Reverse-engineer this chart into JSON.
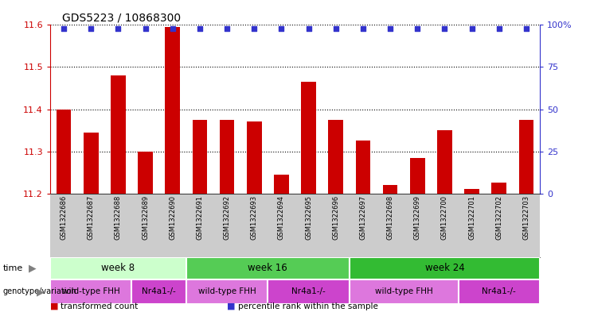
{
  "title": "GDS5223 / 10868300",
  "samples": [
    "GSM1322686",
    "GSM1322687",
    "GSM1322688",
    "GSM1322689",
    "GSM1322690",
    "GSM1322691",
    "GSM1322692",
    "GSM1322693",
    "GSM1322694",
    "GSM1322695",
    "GSM1322696",
    "GSM1322697",
    "GSM1322698",
    "GSM1322699",
    "GSM1322700",
    "GSM1322701",
    "GSM1322702",
    "GSM1322703"
  ],
  "bar_values": [
    11.4,
    11.345,
    11.48,
    11.3,
    11.595,
    11.375,
    11.375,
    11.37,
    11.245,
    11.465,
    11.375,
    11.325,
    11.22,
    11.285,
    11.35,
    11.21,
    11.225,
    11.375
  ],
  "bar_color": "#cc0000",
  "percentile_color": "#3333cc",
  "ymin": 11.2,
  "ymax": 11.6,
  "yticks": [
    11.2,
    11.3,
    11.4,
    11.5,
    11.6
  ],
  "right_yticks": [
    0,
    25,
    50,
    75,
    100
  ],
  "right_yticklabels": [
    "0",
    "25",
    "50",
    "75",
    "100%"
  ],
  "time_groups": [
    {
      "label": "week 8",
      "start": 0,
      "end": 5,
      "color": "#ccffcc"
    },
    {
      "label": "week 16",
      "start": 5,
      "end": 11,
      "color": "#55cc55"
    },
    {
      "label": "week 24",
      "start": 11,
      "end": 18,
      "color": "#33bb33"
    }
  ],
  "genotype_groups": [
    {
      "label": "wild-type FHH",
      "start": 0,
      "end": 3,
      "color": "#dd77dd"
    },
    {
      "label": "Nr4a1-/-",
      "start": 3,
      "end": 5,
      "color": "#cc44cc"
    },
    {
      "label": "wild-type FHH",
      "start": 5,
      "end": 8,
      "color": "#dd77dd"
    },
    {
      "label": "Nr4a1-/-",
      "start": 8,
      "end": 11,
      "color": "#cc44cc"
    },
    {
      "label": "wild-type FHH",
      "start": 11,
      "end": 15,
      "color": "#dd77dd"
    },
    {
      "label": "Nr4a1-/-",
      "start": 15,
      "end": 18,
      "color": "#cc44cc"
    }
  ],
  "left_label_color": "#cc0000",
  "right_label_color": "#3333cc",
  "bar_width": 0.55,
  "background_color": "#ffffff",
  "sample_bg_color": "#cccccc"
}
